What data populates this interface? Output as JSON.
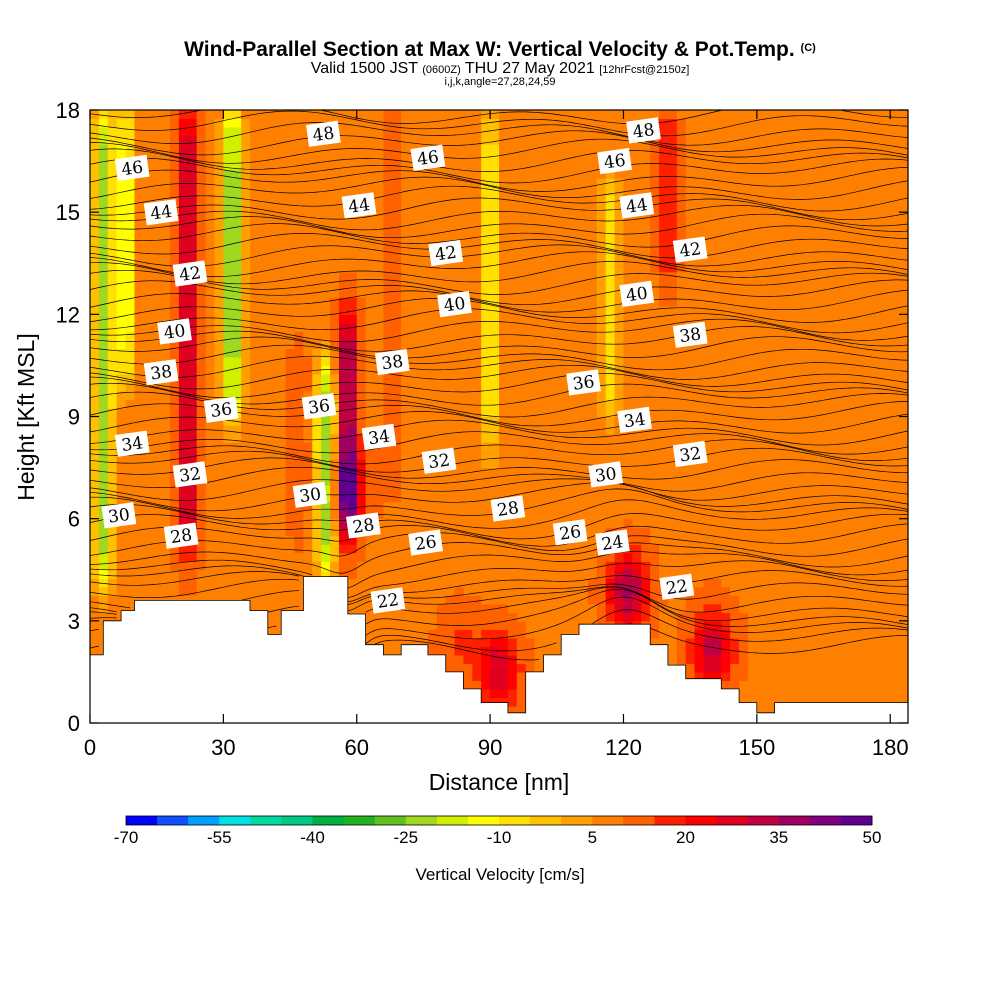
{
  "title": {
    "main": "Wind-Parallel Section at Max W: Vertical Velocity & Pot.Temp.",
    "mark": "(C)",
    "valid_a": "Valid 1500 JST",
    "valid_b": "(0600Z)",
    "valid_c": "THU 27 May 2021",
    "valid_d": "[12hrFcst@2150z]",
    "indices": "i,j,k,angle=27,28,24,59"
  },
  "chart_data": {
    "type": "heatmap",
    "xlabel": "Distance [nm]",
    "ylabel": "Height [Kft MSL]",
    "xlim": [
      0,
      184
    ],
    "ylim": [
      0,
      18
    ],
    "xticks": [
      0,
      30,
      60,
      90,
      120,
      150,
      180
    ],
    "yticks": [
      0,
      3,
      6,
      9,
      12,
      15,
      18
    ],
    "colorbar": {
      "label": "Vertical Velocity [cm/s]",
      "ticks": [
        -70,
        -55,
        -40,
        -25,
        -10,
        5,
        20,
        35,
        50
      ],
      "colors": [
        "#0000ff",
        "#1050ff",
        "#00a0ff",
        "#00e0e0",
        "#00d8a0",
        "#00c880",
        "#00b040",
        "#20b020",
        "#60c020",
        "#a0d820",
        "#d0f000",
        "#ffff00",
        "#ffe000",
        "#ffc000",
        "#ffa000",
        "#ff8000",
        "#ff6000",
        "#ff2000",
        "#ff0000",
        "#e00020",
        "#c00040",
        "#a00060",
        "#800080",
        "#600090"
      ]
    },
    "terrain": [
      [
        0,
        2.0
      ],
      [
        3,
        2.0
      ],
      [
        3,
        3.0
      ],
      [
        7,
        3.0
      ],
      [
        7,
        3.3
      ],
      [
        10,
        3.3
      ],
      [
        10,
        3.6
      ],
      [
        36,
        3.6
      ],
      [
        36,
        3.3
      ],
      [
        40,
        3.3
      ],
      [
        40,
        2.6
      ],
      [
        43,
        2.6
      ],
      [
        43,
        3.3
      ],
      [
        48,
        3.3
      ],
      [
        48,
        4.3
      ],
      [
        58,
        4.3
      ],
      [
        58,
        3.2
      ],
      [
        62,
        3.2
      ],
      [
        62,
        2.3
      ],
      [
        66,
        2.3
      ],
      [
        66,
        2.0
      ],
      [
        70,
        2.0
      ],
      [
        70,
        2.3
      ],
      [
        76,
        2.3
      ],
      [
        76,
        2.0
      ],
      [
        80,
        2.0
      ],
      [
        80,
        1.5
      ],
      [
        84,
        1.5
      ],
      [
        84,
        1.0
      ],
      [
        88,
        1.0
      ],
      [
        88,
        0.6
      ],
      [
        94,
        0.6
      ],
      [
        94,
        0.3
      ],
      [
        98,
        0.3
      ],
      [
        98,
        1.5
      ],
      [
        102,
        1.5
      ],
      [
        102,
        2.0
      ],
      [
        106,
        2.0
      ],
      [
        106,
        2.6
      ],
      [
        110,
        2.6
      ],
      [
        110,
        2.9
      ],
      [
        126,
        2.9
      ],
      [
        126,
        2.3
      ],
      [
        130,
        2.3
      ],
      [
        130,
        1.7
      ],
      [
        134,
        1.7
      ],
      [
        134,
        1.3
      ],
      [
        142,
        1.3
      ],
      [
        142,
        1.0
      ],
      [
        146,
        1.0
      ],
      [
        146,
        0.6
      ],
      [
        150,
        0.6
      ],
      [
        150,
        0.3
      ],
      [
        154,
        0.3
      ],
      [
        154,
        0.6
      ],
      [
        184,
        0.6
      ]
    ],
    "w_field": {
      "base": 9,
      "columns": [
        {
          "x": 3,
          "w": -22,
          "z0": 4,
          "z1": 18
        },
        {
          "x": 8,
          "w": -15,
          "z0": 10,
          "z1": 18
        },
        {
          "x": 22,
          "w": 32,
          "z0": 5,
          "z1": 18
        },
        {
          "x": 32,
          "w": -27,
          "z0": 9,
          "z1": 18
        },
        {
          "x": 47,
          "w": 14,
          "z0": 5.5,
          "z1": 11
        },
        {
          "x": 53,
          "w": -25,
          "z0": 4.5,
          "z1": 10.5
        },
        {
          "x": 58,
          "w": 40,
          "z0": 5.5,
          "z1": 12
        },
        {
          "x": 68,
          "w": 14,
          "z0": 7,
          "z1": 18
        },
        {
          "x": 90,
          "w": -10,
          "z0": 8,
          "z1": 18
        },
        {
          "x": 117,
          "w": -8,
          "z0": 9,
          "z1": 16
        },
        {
          "x": 130,
          "w": 20,
          "z0": 13,
          "z1": 18
        }
      ],
      "blobs": [
        {
          "x": 121,
          "z": 3.9,
          "w": 36
        },
        {
          "x": 140,
          "z": 2.2,
          "w": 32
        },
        {
          "x": 92,
          "z": 1.6,
          "w": 30
        },
        {
          "x": 83,
          "z": 2.4,
          "w": 16
        },
        {
          "x": 58,
          "z": 6.8,
          "w": 26
        }
      ]
    },
    "theta_contours": {
      "levels": [
        22,
        24,
        26,
        28,
        30,
        32,
        34,
        36,
        38,
        40,
        42,
        44,
        46,
        48
      ],
      "labels": [
        {
          "x": 6.5,
          "z": 6.1,
          "text": "30"
        },
        {
          "x": 9.5,
          "z": 8.2,
          "text": "34"
        },
        {
          "x": 16,
          "z": 10.3,
          "text": "38"
        },
        {
          "x": 19,
          "z": 11.5,
          "text": "40"
        },
        {
          "x": 22.5,
          "z": 13.2,
          "text": "42"
        },
        {
          "x": 16,
          "z": 15.0,
          "text": "44"
        },
        {
          "x": 9.5,
          "z": 16.3,
          "text": "46"
        },
        {
          "x": 20.5,
          "z": 5.5,
          "text": "28"
        },
        {
          "x": 22.5,
          "z": 7.3,
          "text": "32"
        },
        {
          "x": 29.5,
          "z": 9.2,
          "text": "36"
        },
        {
          "x": 49.5,
          "z": 6.7,
          "text": "30"
        },
        {
          "x": 51.5,
          "z": 9.3,
          "text": "36"
        },
        {
          "x": 52.5,
          "z": 17.3,
          "text": "48"
        },
        {
          "x": 60.5,
          "z": 15.2,
          "text": "44"
        },
        {
          "x": 61.5,
          "z": 5.8,
          "text": "28"
        },
        {
          "x": 65,
          "z": 8.4,
          "text": "34"
        },
        {
          "x": 68,
          "z": 10.6,
          "text": "38"
        },
        {
          "x": 67,
          "z": 3.6,
          "text": "22"
        },
        {
          "x": 75.5,
          "z": 5.3,
          "text": "26"
        },
        {
          "x": 76,
          "z": 16.6,
          "text": "46"
        },
        {
          "x": 78.5,
          "z": 7.7,
          "text": "32"
        },
        {
          "x": 80,
          "z": 13.8,
          "text": "42"
        },
        {
          "x": 82,
          "z": 12.3,
          "text": "40"
        },
        {
          "x": 94,
          "z": 6.3,
          "text": "28"
        },
        {
          "x": 108,
          "z": 5.6,
          "text": "26"
        },
        {
          "x": 111,
          "z": 10.0,
          "text": "36"
        },
        {
          "x": 116,
          "z": 7.3,
          "text": "30"
        },
        {
          "x": 117.5,
          "z": 5.3,
          "text": "24"
        },
        {
          "x": 118,
          "z": 16.5,
          "text": "46"
        },
        {
          "x": 122.5,
          "z": 8.9,
          "text": "34"
        },
        {
          "x": 123,
          "z": 15.2,
          "text": "44"
        },
        {
          "x": 123,
          "z": 12.6,
          "text": "40"
        },
        {
          "x": 124.5,
          "z": 17.4,
          "text": "48"
        },
        {
          "x": 132,
          "z": 4.0,
          "text": "22"
        },
        {
          "x": 135,
          "z": 7.9,
          "text": "32"
        },
        {
          "x": 135,
          "z": 11.4,
          "text": "38"
        },
        {
          "x": 135,
          "z": 13.9,
          "text": "42"
        }
      ]
    }
  }
}
